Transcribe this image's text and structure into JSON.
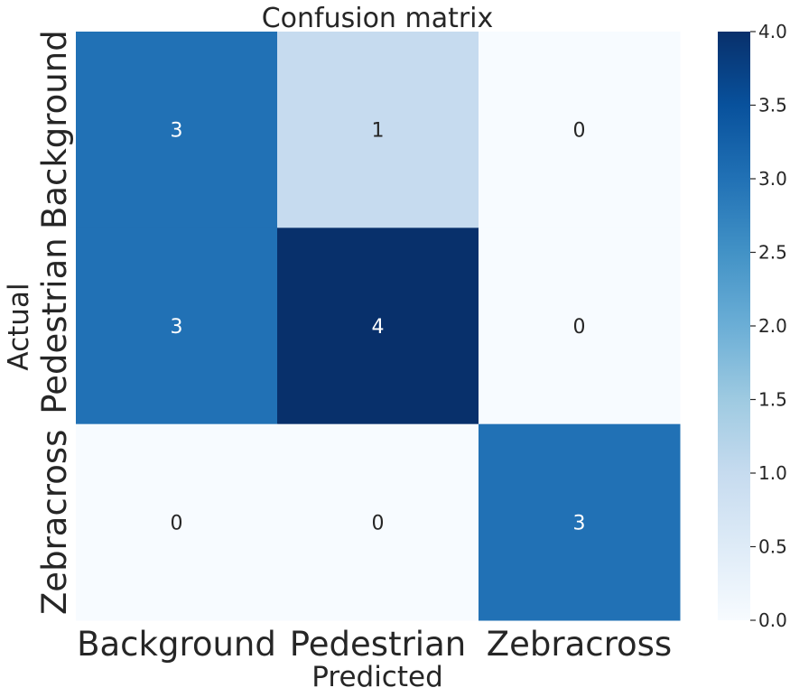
{
  "chart_data": {
    "type": "heatmap",
    "title": "Confusion matrix",
    "xlabel": "Predicted",
    "ylabel": "Actual",
    "x_categories": [
      "Background",
      "Pedestrian",
      "Zebracross"
    ],
    "y_categories": [
      "Background",
      "Pedestrian",
      "Zebracross"
    ],
    "values": [
      [
        3,
        1,
        0
      ],
      [
        3,
        4,
        0
      ],
      [
        0,
        0,
        3
      ]
    ],
    "cell_labels": [
      [
        "3",
        "1",
        "0"
      ],
      [
        "3",
        "4",
        "0"
      ],
      [
        "0",
        "0",
        "3"
      ]
    ],
    "colormap": "Blues",
    "vmin": 0,
    "vmax": 4,
    "colorbar_ticks": [
      "0.0",
      "0.5",
      "1.0",
      "1.5",
      "2.0",
      "2.5",
      "3.0",
      "3.5",
      "4.0"
    ],
    "colorbar_tick_values": [
      0,
      0.5,
      1,
      1.5,
      2,
      2.5,
      3,
      3.5,
      4
    ],
    "colors": {
      "cell_0": "#f7fbff",
      "cell_1": "#c6dbef",
      "cell_3": "#2171b5",
      "cell_4": "#08306b",
      "text_on_light": "#262626",
      "text_on_dark": "#ffffff"
    }
  }
}
